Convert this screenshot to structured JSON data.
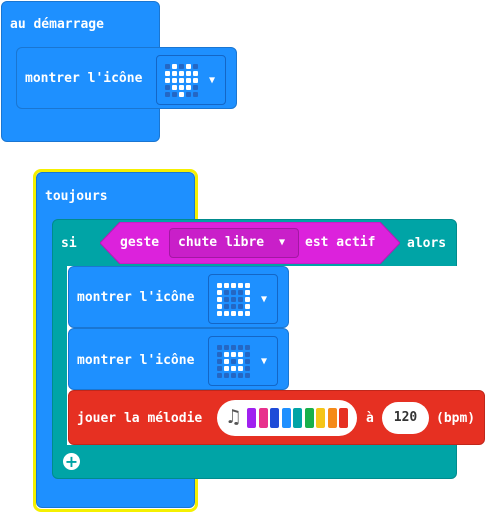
{
  "start_block": {
    "hat_label": "au démarrage",
    "show_icon_label": "montrer l'icône",
    "icon": "heart-icon",
    "icon_pattern": [
      [
        0,
        1,
        0,
        1,
        0
      ],
      [
        1,
        1,
        1,
        1,
        1
      ],
      [
        1,
        1,
        1,
        1,
        1
      ],
      [
        0,
        1,
        1,
        1,
        0
      ],
      [
        0,
        0,
        1,
        0,
        0
      ]
    ]
  },
  "forever_block": {
    "hat_label": "toujours",
    "if_label": "si",
    "then_label": "alors",
    "gesture_label": "geste",
    "gesture_value": "chute libre",
    "is_active_label": "est actif",
    "show_icon_1_label": "montrer l'icône",
    "icon_1": "square-icon",
    "icon_1_pattern": [
      [
        1,
        1,
        1,
        1,
        1
      ],
      [
        1,
        0,
        0,
        0,
        1
      ],
      [
        1,
        0,
        0,
        0,
        1
      ],
      [
        1,
        0,
        0,
        0,
        1
      ],
      [
        1,
        1,
        1,
        1,
        1
      ]
    ],
    "show_icon_2_label": "montrer l'icône",
    "icon_2": "small-square-icon",
    "icon_2_pattern": [
      [
        0,
        0,
        0,
        0,
        0
      ],
      [
        0,
        1,
        1,
        1,
        0
      ],
      [
        0,
        1,
        0,
        1,
        0
      ],
      [
        0,
        1,
        1,
        1,
        0
      ],
      [
        0,
        0,
        0,
        0,
        0
      ]
    ],
    "melody_label": "jouer la mélodie",
    "melody_icon": "music-note-icon",
    "melody_colors": [
      "#a020f0",
      "#e8308c",
      "#1e4bd8",
      "#1e90ff",
      "#00a4a6",
      "#18b04a",
      "#f5c518",
      "#f58a18",
      "#e63022"
    ],
    "at_label": "à",
    "tempo_value": "120",
    "bpm_label": "(bpm)",
    "add_icon": "plus-icon"
  },
  "colors": {
    "basic_blue": "#1e90ff",
    "logic_teal": "#00a4a6",
    "input_magenta": "#dc22dc",
    "music_red": "#e63022",
    "selection_yellow": "#f5f000"
  }
}
